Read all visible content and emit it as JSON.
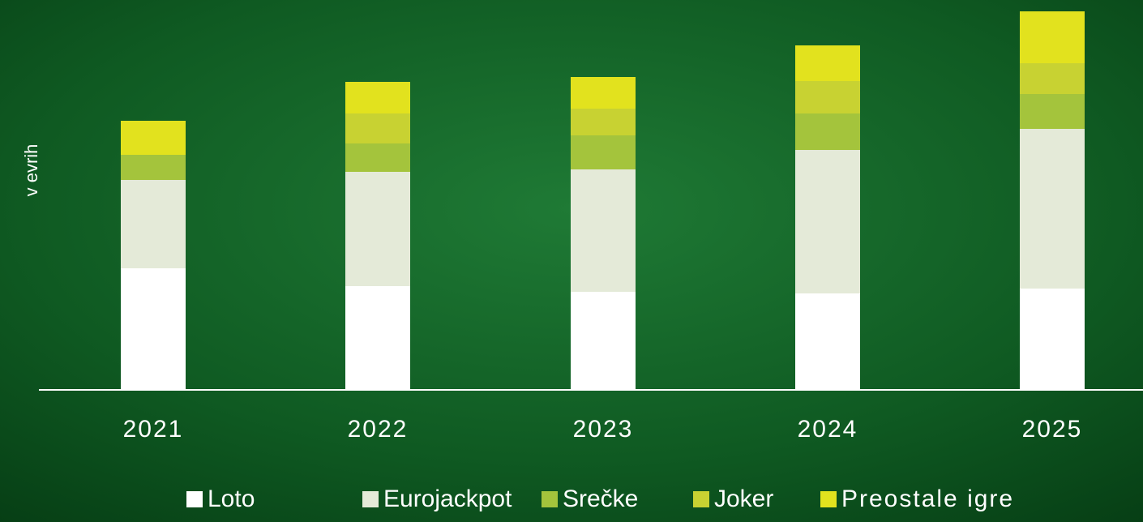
{
  "chart_data": {
    "type": "stacked-bar",
    "y_label": "v evrih",
    "categories": [
      "2021",
      "2022",
      "2023",
      "2024",
      "2025"
    ],
    "ylim": [
      0,
      470
    ],
    "series": [
      {
        "name": "Loto",
        "color": "#ffffff",
        "values": [
          150,
          128,
          121,
          119,
          125
        ]
      },
      {
        "name": "Eurojackpot",
        "color": "#e4ead8",
        "values": [
          109,
          141,
          151,
          177,
          197
        ]
      },
      {
        "name": "Srečke",
        "color": "#a4c43c",
        "values": [
          31,
          35,
          42,
          45,
          43
        ]
      },
      {
        "name": "Joker",
        "color": "#c8d232",
        "values": [
          0,
          37,
          33,
          40,
          38
        ]
      },
      {
        "name": "Preostale igre",
        "color": "#e2e21e",
        "values": [
          42,
          39,
          39,
          44,
          64
        ]
      }
    ]
  }
}
